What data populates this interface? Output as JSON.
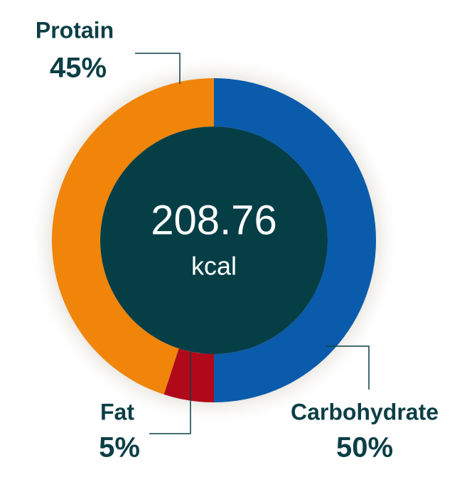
{
  "chart_data": {
    "type": "donut",
    "categories": [
      "Carbohydrate",
      "Fat",
      "Protain"
    ],
    "values": [
      50,
      5,
      45
    ],
    "value_labels": [
      "50%",
      "5%",
      "45%"
    ],
    "colors": [
      "#0a5bab",
      "#b00a1a",
      "#f0850a"
    ],
    "center_value": 208.76,
    "center_unit": "kcal"
  }
}
